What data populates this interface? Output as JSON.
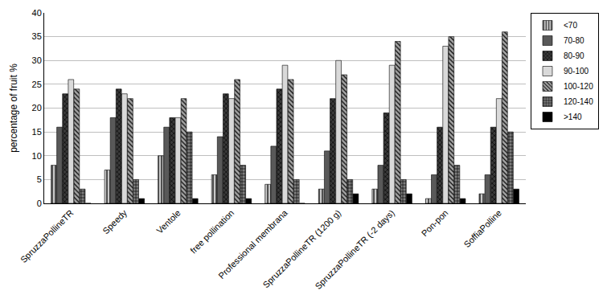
{
  "chart_data": {
    "type": "bar",
    "y_label": "percentage of fruit %",
    "categories": [
      "SpruzzaPollineTR",
      "Speedy",
      "Ventole",
      "free pollination",
      "Professional membrana",
      "SpruzzaPollineTR (1200 g)",
      "SpruzzaPollineTR (-2 days)",
      "Pon-pon",
      "SoffiaPolline"
    ],
    "series": [
      {
        "name": "<70",
        "color": "#c8c8c8",
        "values": [
          8,
          7,
          10,
          6,
          4,
          3,
          3,
          1,
          2
        ]
      },
      {
        "name": "70-80",
        "color": "#595959",
        "values": [
          16,
          18,
          16,
          14,
          12,
          11,
          8,
          6,
          6
        ]
      },
      {
        "name": "80-90",
        "color": "#3a3a3a",
        "values": [
          23,
          24,
          18,
          23,
          24,
          22,
          19,
          16,
          16
        ]
      },
      {
        "name": "90-100",
        "color": "#d9d9d9",
        "values": [
          26,
          23,
          18,
          22,
          29,
          30,
          29,
          33,
          22
        ]
      },
      {
        "name": "100-120",
        "color": "#a6a6a6",
        "values": [
          24,
          22,
          22,
          26,
          26,
          27,
          34,
          35,
          36
        ]
      },
      {
        "name": "120-140",
        "color": "#7f7f7f",
        "values": [
          3,
          5,
          15,
          8,
          5,
          5,
          5,
          8,
          15
        ]
      },
      {
        "name": ">140",
        "color": "#000000",
        "values": [
          0,
          1,
          1,
          1,
          0,
          2,
          2,
          1,
          3
        ]
      }
    ],
    "ylim": [
      0,
      40
    ],
    "yticks": [
      0,
      5,
      10,
      15,
      20,
      25,
      30,
      35,
      40
    ],
    "grid": true,
    "legend": "right"
  }
}
